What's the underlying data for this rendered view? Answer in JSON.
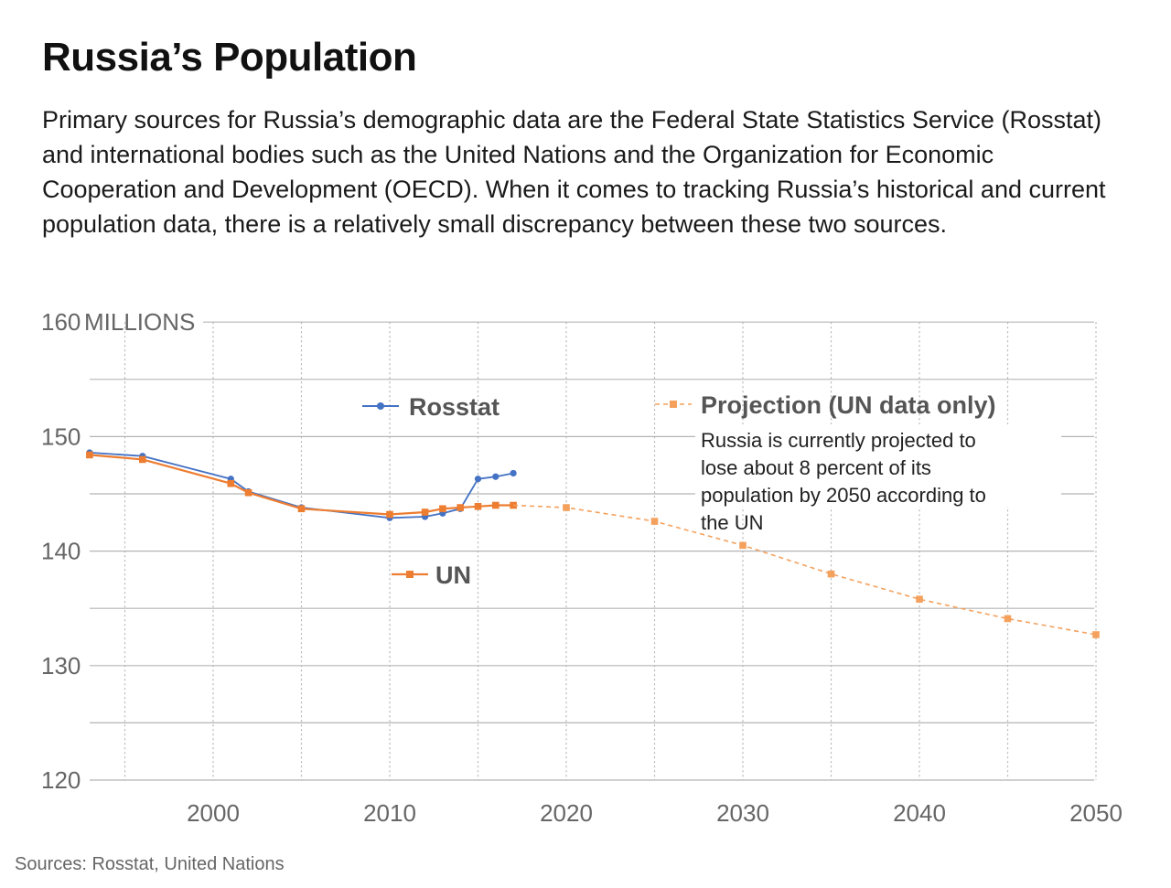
{
  "title": "Russia’s Population",
  "subtitle": "Primary sources for Russia’s demographic data are the Federal State Statistics Service (Rosstat) and international bodies such as the United Nations and the Organization for Economic Cooperation and Development (OECD). When it comes to tracking Russia’s historical and current population data, there is a relatively small discrepancy between these two sources.",
  "source": "Sources: Rosstat, United Nations",
  "colors": {
    "rosstat": "#4472C4",
    "un": "#ED7D31",
    "projection": "#F4A15D",
    "grid": "#b5b5b5",
    "axis_text": "#666666",
    "label_text": "#555555"
  },
  "chart_data": {
    "type": "line",
    "ylabel": "MILLIONS",
    "xlim": [
      1993,
      2050
    ],
    "ylim": [
      120,
      160
    ],
    "x_ticks": [
      2000,
      2010,
      2020,
      2030,
      2040,
      2050
    ],
    "y_ticks": [
      120,
      130,
      140,
      150,
      160
    ],
    "y_grid": [
      120,
      125,
      130,
      135,
      140,
      145,
      150,
      155,
      160
    ],
    "x_grid": [
      1995,
      2000,
      2005,
      2010,
      2015,
      2020,
      2025,
      2030,
      2035,
      2040,
      2045,
      2050
    ],
    "series": [
      {
        "name": "Rosstat",
        "style": "solid",
        "marker": "circle",
        "x": [
          1993,
          1996,
          2001,
          2002,
          2005,
          2010,
          2012,
          2013,
          2014,
          2015,
          2016,
          2017
        ],
        "y": [
          148.6,
          148.3,
          146.3,
          145.2,
          143.8,
          142.9,
          143.0,
          143.3,
          143.7,
          146.3,
          146.5,
          146.8
        ]
      },
      {
        "name": "UN",
        "style": "solid",
        "marker": "square",
        "x": [
          1993,
          1996,
          2001,
          2002,
          2005,
          2010,
          2012,
          2013,
          2014,
          2015,
          2016,
          2017
        ],
        "y": [
          148.4,
          148.0,
          145.9,
          145.1,
          143.7,
          143.2,
          143.4,
          143.7,
          143.8,
          143.9,
          144.0,
          144.0
        ]
      },
      {
        "name": "Projection (UN data only)",
        "style": "dashed",
        "marker": "square",
        "x": [
          2017,
          2020,
          2025,
          2030,
          2035,
          2040,
          2045,
          2050
        ],
        "y": [
          144.0,
          143.8,
          142.6,
          140.5,
          138.0,
          135.8,
          134.1,
          132.7
        ]
      }
    ],
    "legend": {
      "rosstat": "Rosstat",
      "un": "UN",
      "projection": "Projection (UN data only)"
    },
    "annotation": "Russia is currently projected to lose about 8 percent of its population by 2050 according to the UN"
  }
}
